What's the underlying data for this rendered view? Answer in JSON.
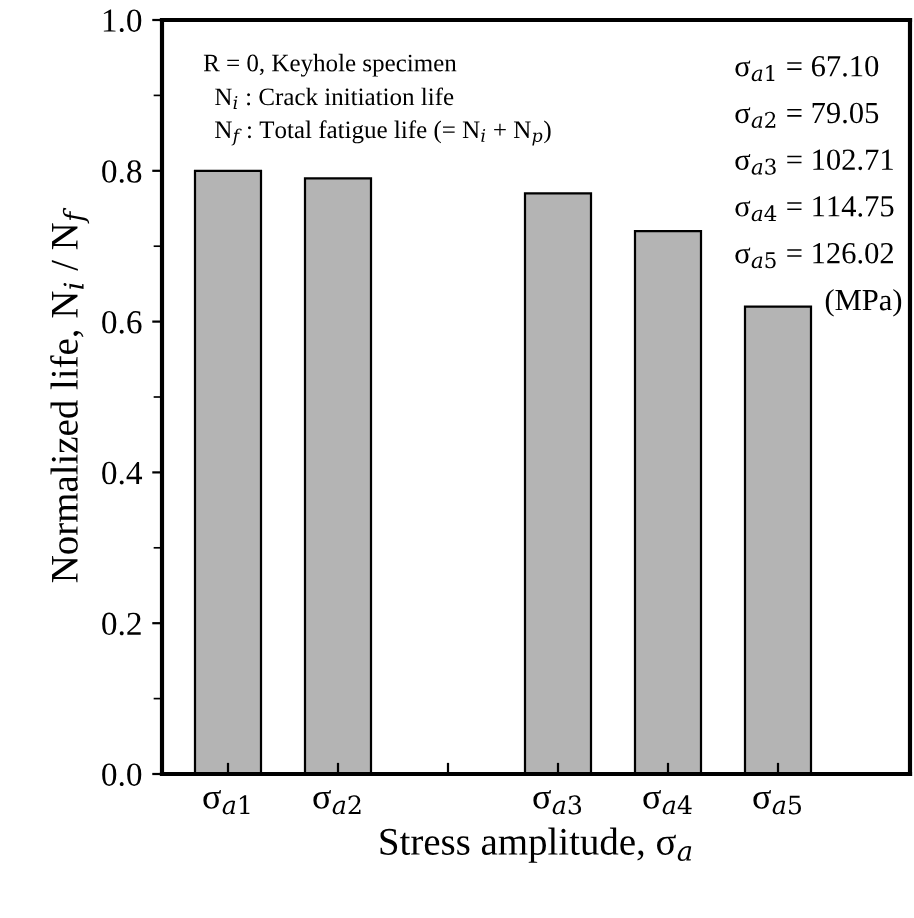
{
  "chart_data": {
    "type": "bar",
    "xlabel": "Stress amplitude, σ$_{a}$",
    "ylabel": "Normalized life, N$_{i}$ / N$_{f}$",
    "categories": [
      "σ$_{a1}$",
      "σ$_{a2}$",
      null,
      "σ$_{a3}$",
      "σ$_{a4}$",
      "σ$_{a5}$"
    ],
    "values": [
      0.8,
      0.79,
      null,
      0.77,
      0.72,
      0.62
    ],
    "color": "#b4b4b4",
    "ylim": [
      0,
      1.0
    ],
    "yticks": [
      {
        "value": 0,
        "label": "0.0"
      },
      0.2,
      0.4,
      0.6,
      0.8,
      {
        "value": 1,
        "label": "1.0"
      }
    ],
    "grid": false,
    "legend": false,
    "annotations": [
      "R = 0, Keyhole specimen",
      "N$_{i}$ : Crack initiation life",
      "N$_{f}$ : Total fatigue life (= N$_{i}$ + N$_{p}$)",
      "σ$_{a1}$ = 67.10",
      "σ$_{a2}$ = 79.05",
      "σ$_{a3}$ = 102.71",
      "σ$_{a4}$ = 114.75",
      "σ$_{a5}$ = 126.02",
      "(MPa)"
    ]
  }
}
